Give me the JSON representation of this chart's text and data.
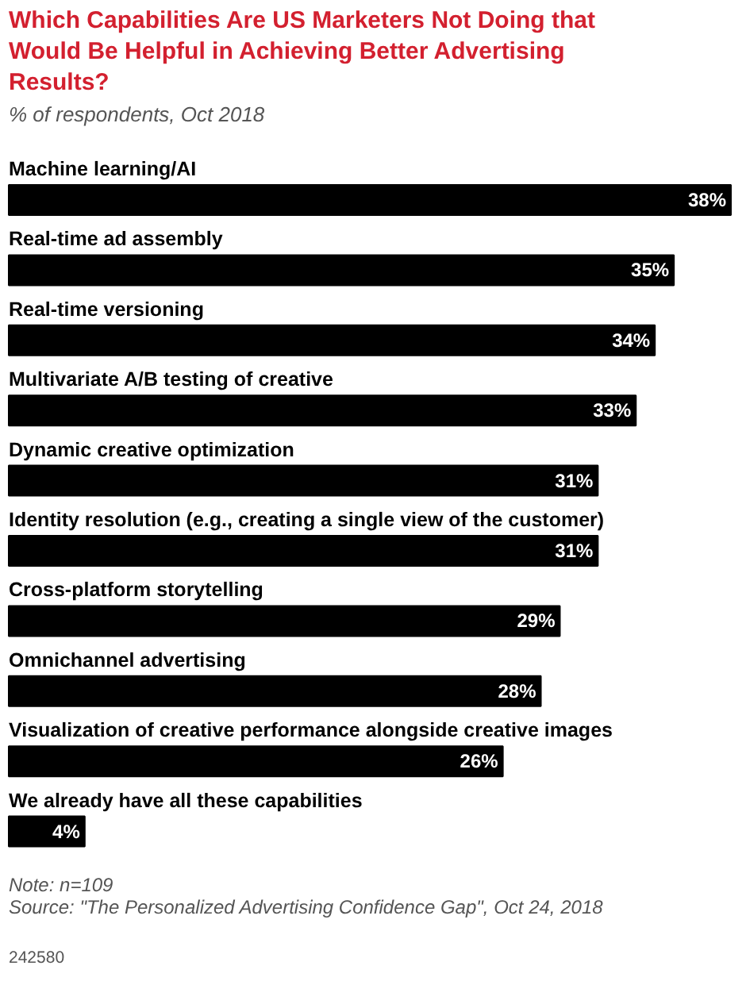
{
  "chart_data": {
    "type": "bar",
    "orientation": "horizontal",
    "title": "Which Capabilities Are US Marketers Not Doing that Would Be Helpful in Achieving Better Advertising Results?",
    "subtitle": "% of respondents, Oct 2018",
    "categories": [
      "Machine learning/AI",
      "Real-time ad assembly",
      "Real-time versioning",
      "Multivariate A/B testing of creative",
      "Dynamic creative optimization",
      "Identity resolution (e.g., creating a single view of the customer)",
      "Cross-platform storytelling",
      "Omnichannel advertising",
      "Visualization of creative performance alongside creative images",
      "We already have all these capabilities"
    ],
    "values": [
      38,
      35,
      34,
      33,
      31,
      31,
      29,
      28,
      26,
      4
    ],
    "color": "#000000",
    "value_labels": [
      "38%",
      "35%",
      "34%",
      "33%",
      "31%",
      "31%",
      "29%",
      "28%",
      "26%",
      "4%"
    ],
    "annotations": [
      "Note: n=109",
      "Source: \"The Personalized Advertising Confidence Gap\", Oct 24, 2018",
      "242580"
    ],
    "grid": false
  }
}
